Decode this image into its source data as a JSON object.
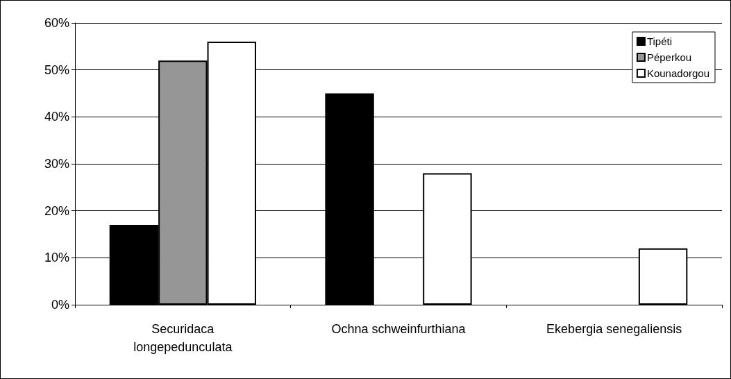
{
  "chart_data": {
    "type": "bar",
    "categories": [
      "Securidaca longepedunculata",
      "Ochna schweinfurthiana",
      "Ekebergia senegaliensis"
    ],
    "series": [
      {
        "name": "Tipéti",
        "color": "#000000",
        "values": [
          17,
          45,
          null
        ]
      },
      {
        "name": "Péperkou",
        "color": "#969696",
        "values": [
          52,
          null,
          null
        ]
      },
      {
        "name": "Kounadorgou",
        "color": "#ffffff",
        "values": [
          56,
          28,
          12
        ]
      }
    ],
    "ylim": [
      0,
      60
    ],
    "yticks": [
      {
        "value": 0,
        "label": "0%"
      },
      {
        "value": 10,
        "label": "10%"
      },
      {
        "value": 20,
        "label": "20%"
      },
      {
        "value": 30,
        "label": "30%"
      },
      {
        "value": 40,
        "label": "40%"
      },
      {
        "value": 50,
        "label": "50%"
      },
      {
        "value": 60,
        "label": "60%"
      }
    ],
    "grid": "y",
    "legend": "top right"
  }
}
